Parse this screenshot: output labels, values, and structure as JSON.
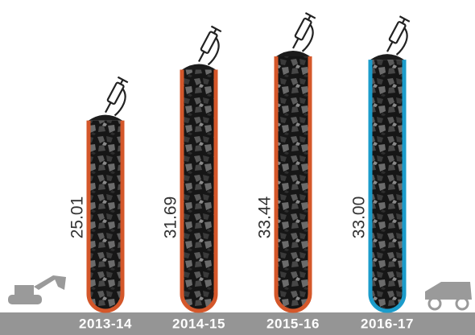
{
  "chart_data": {
    "type": "bar",
    "categories": [
      "2013-14",
      "2014-15",
      "2015-16",
      "2016-17"
    ],
    "values": [
      25.01,
      31.69,
      33.44,
      33.0
    ],
    "value_labels": [
      "25.01",
      "31.69",
      "33.44",
      "33.00"
    ],
    "colors": [
      "#d4572a",
      "#d4572a",
      "#d4572a",
      "#1b9ccb"
    ]
  }
}
